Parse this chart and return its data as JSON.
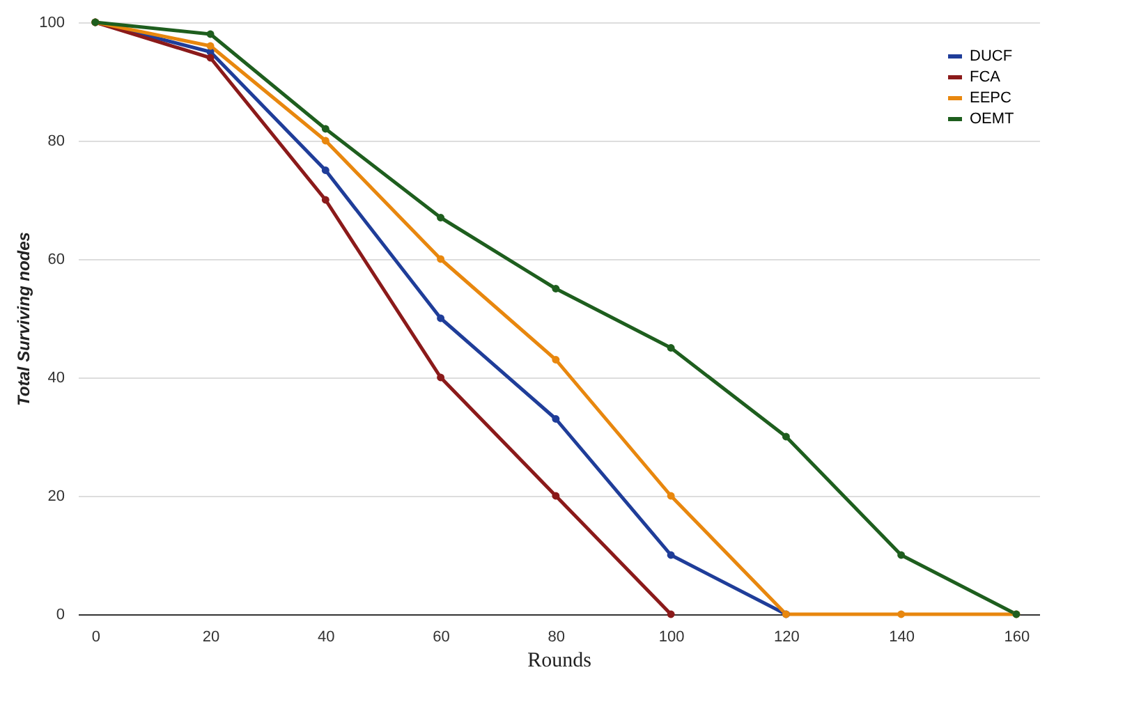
{
  "chart_data": {
    "type": "line",
    "xlabel": "Rounds",
    "ylabel": "Total Surviving nodes",
    "xlim": [
      -3,
      164
    ],
    "xticks": [
      0,
      20,
      40,
      60,
      80,
      100,
      120,
      140,
      160
    ],
    "ylim": [
      0,
      100
    ],
    "yticks": [
      0,
      20,
      40,
      60,
      80,
      100
    ],
    "grid": "y",
    "legend": "top right",
    "marker": "circle",
    "line_style": "solid",
    "series": [
      {
        "name": "DUCF",
        "color": "#1f3d99",
        "x": [
          0,
          20,
          40,
          60,
          80,
          100,
          120
        ],
        "values": [
          100,
          95,
          75,
          50,
          33,
          10,
          0
        ]
      },
      {
        "name": "FCA",
        "color": "#8b1a1a",
        "x": [
          0,
          20,
          40,
          60,
          80,
          100
        ],
        "values": [
          100,
          94,
          70,
          40,
          20,
          0
        ]
      },
      {
        "name": "EEPC",
        "color": "#e8870e",
        "x": [
          0,
          20,
          40,
          60,
          80,
          100,
          120,
          140,
          160
        ],
        "values": [
          100,
          96,
          80,
          60,
          43,
          20,
          0,
          0,
          0
        ]
      },
      {
        "name": "OEMT",
        "color": "#1e5e1e",
        "x": [
          0,
          20,
          40,
          60,
          80,
          100,
          120,
          140,
          160
        ],
        "values": [
          100,
          98,
          82,
          67,
          55,
          45,
          30,
          10,
          0
        ]
      }
    ]
  }
}
